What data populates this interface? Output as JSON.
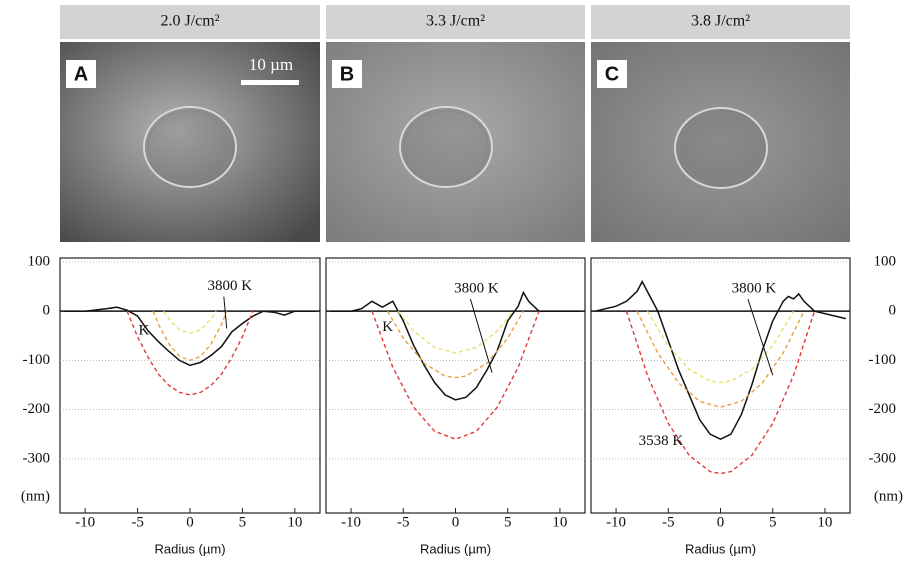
{
  "images": [
    {
      "header": "2.0 J/cm²",
      "label": "A"
    },
    {
      "header": "3.3 J/cm²",
      "label": "B"
    },
    {
      "header": "3.8 J/cm²",
      "label": "C"
    }
  ],
  "scale_bar": "10 µm",
  "chart_data": [
    {
      "type": "line",
      "x_label": "Radius (µm)",
      "y_label": "(nm)",
      "xlim": [
        -12.4,
        12.4
      ],
      "xticks": [
        -10,
        -5,
        0,
        5,
        10
      ],
      "ylim": [
        -410,
        108
      ],
      "yticks": [
        100,
        0,
        -100,
        -200,
        -300
      ],
      "grid": true,
      "annotations": [
        "3800 K",
        "K"
      ],
      "series": [
        {
          "color": "#111111",
          "dash": false,
          "x": [
            -12,
            -10,
            -8,
            -7,
            -6,
            -5,
            -4,
            -3,
            -2,
            -1,
            0,
            1,
            2,
            3,
            4,
            5,
            6,
            7,
            8,
            9,
            10,
            12
          ],
          "values": [
            0,
            0,
            5,
            8,
            2,
            -10,
            -40,
            -62,
            -82,
            -100,
            -110,
            -104,
            -90,
            -72,
            -42,
            -25,
            -10,
            0,
            -2,
            -8,
            0,
            0
          ]
        },
        {
          "color": "#e03a3a",
          "dash": true,
          "x": [
            -6,
            -5,
            -4,
            -3,
            -2,
            -1,
            0,
            1,
            2,
            3,
            4,
            5,
            6
          ],
          "values": [
            0,
            -52,
            -94,
            -128,
            -151,
            -165,
            -170,
            -165,
            -151,
            -128,
            -94,
            -52,
            0
          ]
        },
        {
          "color": "#e8a040",
          "dash": true,
          "x": [
            -3.5,
            -3,
            -2,
            -1,
            0,
            1,
            2,
            3,
            3.5
          ],
          "values": [
            0,
            -27,
            -67,
            -92,
            -100,
            -92,
            -67,
            -27,
            0
          ]
        },
        {
          "color": "#e8e070",
          "dash": true,
          "x": [
            -2.5,
            -2,
            -1,
            0,
            1,
            2,
            2.5
          ],
          "values": [
            0,
            -16,
            -38,
            -45,
            -38,
            -16,
            0
          ]
        }
      ]
    },
    {
      "type": "line",
      "x_label": "Radius (µm)",
      "y_label": "(nm)",
      "xlim": [
        -12.4,
        12.4
      ],
      "xticks": [
        -10,
        -5,
        0,
        5,
        10
      ],
      "ylim": [
        -410,
        108
      ],
      "yticks": [
        100,
        0,
        -100,
        -200,
        -300
      ],
      "grid": true,
      "annotations": [
        "3800 K",
        "K"
      ],
      "series": [
        {
          "color": "#111111",
          "dash": false,
          "x": [
            -12,
            -10,
            -9,
            -8,
            -7,
            -6,
            -5,
            -4,
            -3,
            -2,
            -1,
            0,
            1,
            2,
            3,
            4,
            5,
            6,
            6.5,
            7,
            8,
            10,
            12
          ],
          "values": [
            0,
            0,
            5,
            20,
            8,
            20,
            -20,
            -70,
            -110,
            -145,
            -170,
            -180,
            -175,
            -155,
            -120,
            -80,
            -20,
            10,
            38,
            20,
            0,
            0,
            0
          ]
        },
        {
          "color": "#e03a3a",
          "dash": true,
          "x": [
            -8,
            -6,
            -4,
            -2,
            0,
            2,
            4,
            6,
            8
          ],
          "values": [
            0,
            -114,
            -195,
            -244,
            -260,
            -244,
            -195,
            -114,
            0
          ]
        },
        {
          "color": "#e8a040",
          "dash": true,
          "x": [
            -6.5,
            -5,
            -3,
            -1,
            0,
            1,
            3,
            5,
            6.5
          ],
          "values": [
            0,
            -55,
            -106,
            -132,
            -135,
            -132,
            -106,
            -55,
            0
          ]
        },
        {
          "color": "#e8e070",
          "dash": true,
          "x": [
            -5.5,
            -4,
            -2,
            0,
            2,
            4,
            5.5
          ],
          "values": [
            0,
            -40,
            -74,
            -85,
            -74,
            -40,
            0
          ]
        }
      ]
    },
    {
      "type": "line",
      "x_label": "Radius (µm)",
      "y_label": "(nm)",
      "xlim": [
        -12.4,
        12.4
      ],
      "xticks": [
        -10,
        -5,
        0,
        5,
        10
      ],
      "ylim": [
        -410,
        108
      ],
      "yticks": [
        100,
        0,
        -100,
        -200,
        -300
      ],
      "grid": true,
      "annotations": [
        "3800 K",
        "3538 K"
      ],
      "series": [
        {
          "color": "#111111",
          "dash": false,
          "x": [
            -12,
            -10,
            -9,
            -8,
            -7.5,
            -7,
            -6,
            -5,
            -4,
            -3,
            -2,
            -1,
            0,
            1,
            2,
            3,
            4,
            5,
            6,
            6.5,
            7,
            7.5,
            8,
            9,
            10,
            12
          ],
          "values": [
            0,
            10,
            20,
            40,
            60,
            40,
            0,
            -60,
            -120,
            -170,
            -220,
            -250,
            -260,
            -250,
            -210,
            -150,
            -80,
            -20,
            20,
            30,
            25,
            35,
            20,
            0,
            -5,
            -15
          ]
        },
        {
          "color": "#e03a3a",
          "dash": true,
          "x": [
            -9,
            -7,
            -5,
            -3,
            -1,
            0,
            1,
            3,
            5,
            7,
            9
          ],
          "values": [
            0,
            -130,
            -228,
            -293,
            -326,
            -330,
            -326,
            -293,
            -228,
            -130,
            0
          ]
        },
        {
          "color": "#e8a040",
          "dash": true,
          "x": [
            -8,
            -6,
            -4,
            -2,
            0,
            2,
            4,
            6,
            8
          ],
          "values": [
            0,
            -85,
            -146,
            -183,
            -195,
            -183,
            -146,
            -85,
            0
          ]
        },
        {
          "color": "#e8e070",
          "dash": true,
          "x": [
            -7,
            -5,
            -3,
            -1,
            0,
            1,
            3,
            5,
            7
          ],
          "values": [
            0,
            -71,
            -118,
            -142,
            -145,
            -142,
            -118,
            -71,
            0
          ]
        }
      ]
    }
  ]
}
